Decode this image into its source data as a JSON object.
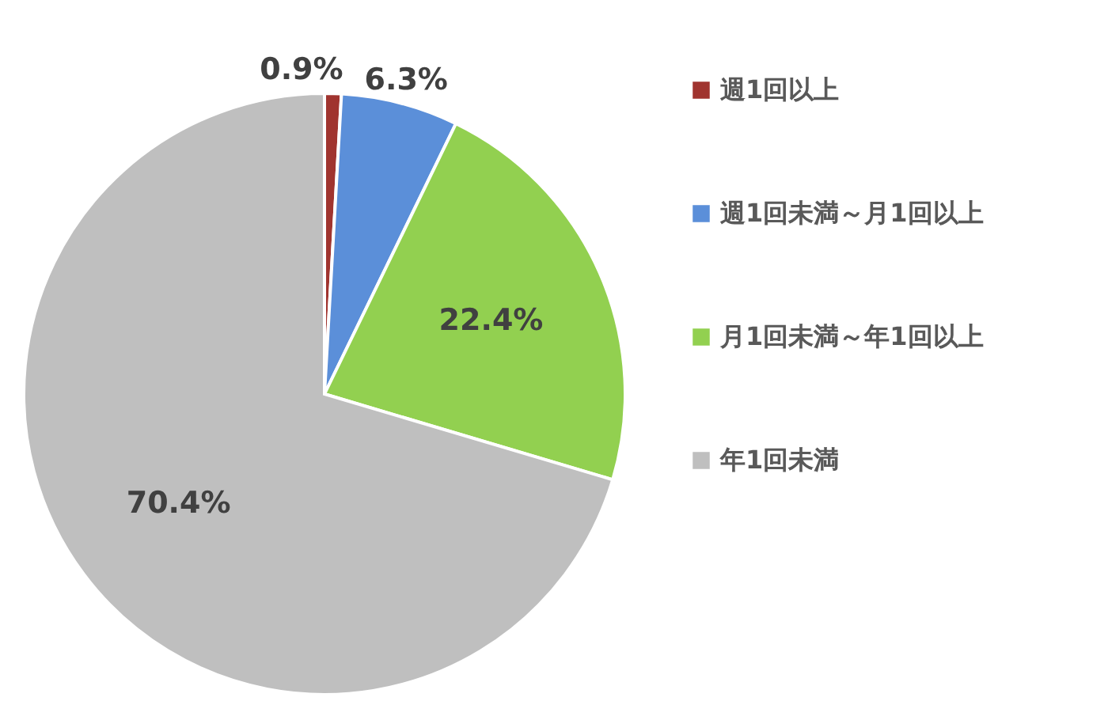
{
  "chart_data": {
    "type": "pie",
    "categories": [
      "週1回以上",
      "週1回未満～月1回以上",
      "月1回未満～年1回以上",
      "年1回未満"
    ],
    "values": [
      0.9,
      6.3,
      22.4,
      70.4
    ],
    "colors": [
      "#a0342f",
      "#5b8fd9",
      "#92d050",
      "#bfbfbf"
    ],
    "value_labels": [
      "0.9%",
      "6.3%",
      "22.4%",
      "70.4%"
    ],
    "legend": "right"
  }
}
